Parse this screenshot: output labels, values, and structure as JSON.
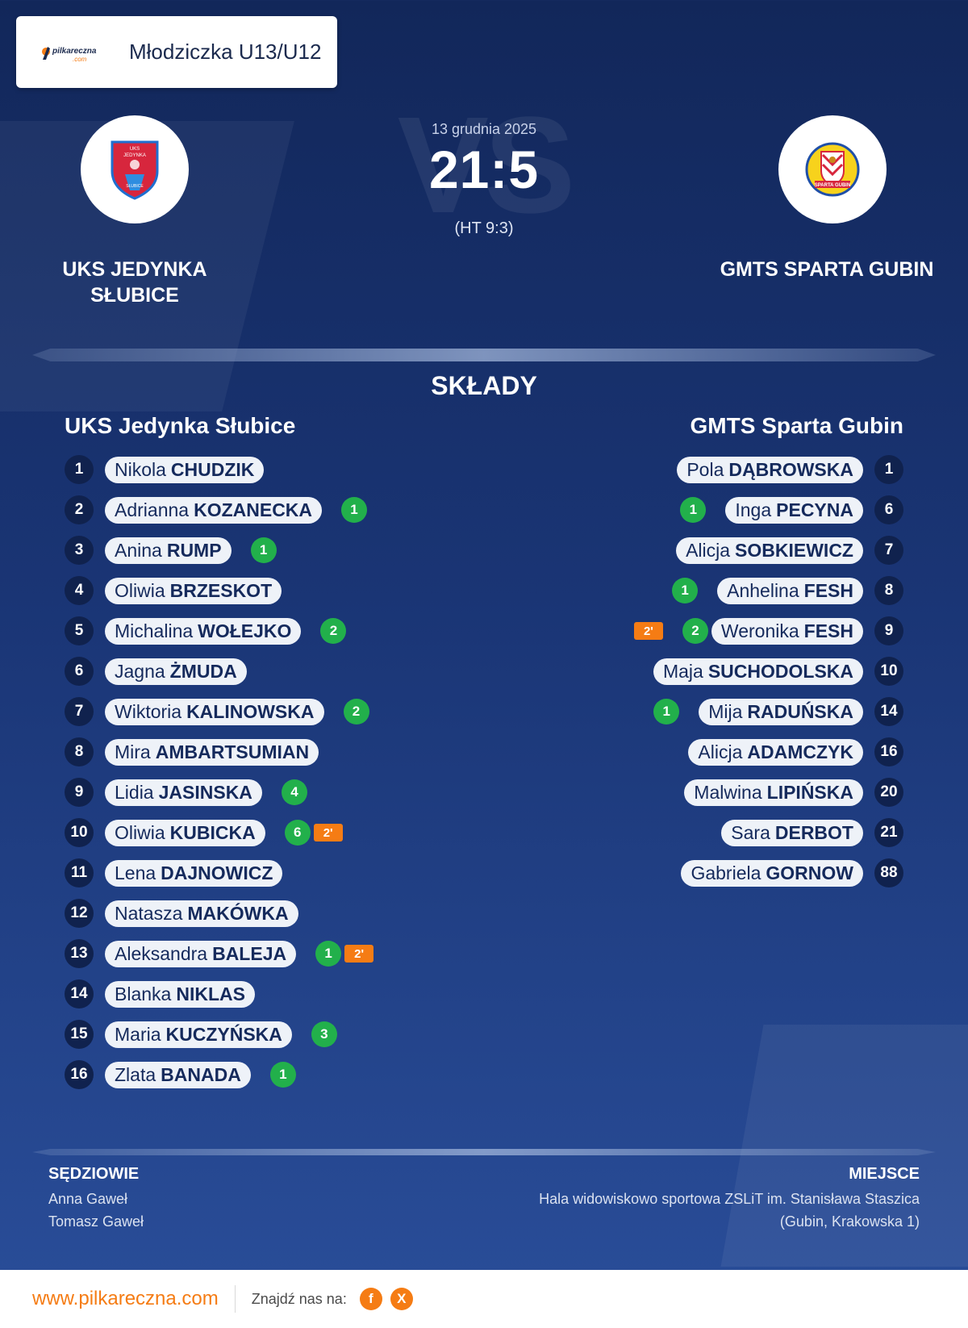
{
  "header": {
    "league": "Młodziczka U13/U12",
    "logo_text": "pilkareczna",
    "logo_sub": ".com"
  },
  "match": {
    "date": "13 grudnia 2025",
    "score": "21:5",
    "halftime": "(HT 9:3)",
    "vs_watermark": "VS",
    "home_logo_text": [
      "UKS",
      "JEDYNKA",
      "SŁUBICE"
    ],
    "away_logo_text": "SPARTA GUBIN",
    "home": {
      "name_line1": "UKS JEDYNKA",
      "name_line2": "SŁUBICE"
    },
    "away": {
      "name": "GMTS SPARTA GUBIN"
    }
  },
  "lineups": {
    "title": "SKŁADY",
    "home_title": "UKS Jedynka Słubice",
    "away_title": "GMTS Sparta Gubin",
    "home_players": [
      {
        "number": "1",
        "first": "Nikola",
        "last": "CHUDZIK",
        "goals": "",
        "penalty": ""
      },
      {
        "number": "2",
        "first": "Adrianna",
        "last": "KOZANECKA",
        "goals": "1",
        "penalty": ""
      },
      {
        "number": "3",
        "first": "Anina",
        "last": "RUMP",
        "goals": "1",
        "penalty": ""
      },
      {
        "number": "4",
        "first": "Oliwia",
        "last": "BRZESKOT",
        "goals": "",
        "penalty": ""
      },
      {
        "number": "5",
        "first": "Michalina",
        "last": "WOŁEJKO",
        "goals": "2",
        "penalty": ""
      },
      {
        "number": "6",
        "first": "Jagna",
        "last": "ŻMUDA",
        "goals": "",
        "penalty": ""
      },
      {
        "number": "7",
        "first": "Wiktoria",
        "last": "KALINOWSKA",
        "goals": "2",
        "penalty": ""
      },
      {
        "number": "8",
        "first": "Mira",
        "last": "AMBARTSUMIAN",
        "goals": "",
        "penalty": ""
      },
      {
        "number": "9",
        "first": "Lidia",
        "last": "JASINSKA",
        "goals": "4",
        "penalty": ""
      },
      {
        "number": "10",
        "first": "Oliwia",
        "last": "KUBICKA",
        "goals": "6",
        "penalty": "2'"
      },
      {
        "number": "11",
        "first": "Lena",
        "last": "DAJNOWICZ",
        "goals": "",
        "penalty": ""
      },
      {
        "number": "12",
        "first": "Natasza",
        "last": "MAKÓWKA",
        "goals": "",
        "penalty": ""
      },
      {
        "number": "13",
        "first": "Aleksandra",
        "last": "BALEJA",
        "goals": "1",
        "penalty": "2'"
      },
      {
        "number": "14",
        "first": "Blanka",
        "last": "NIKLAS",
        "goals": "",
        "penalty": ""
      },
      {
        "number": "15",
        "first": "Maria",
        "last": "KUCZYŃSKA",
        "goals": "3",
        "penalty": ""
      },
      {
        "number": "16",
        "first": "Zlata",
        "last": "BANADA",
        "goals": "1",
        "penalty": ""
      }
    ],
    "away_players": [
      {
        "number": "1",
        "first": "Pola",
        "last": "DĄBROWSKA",
        "goals": "",
        "penalty": ""
      },
      {
        "number": "6",
        "first": "Inga",
        "last": "PECYNA",
        "goals": "1",
        "penalty": ""
      },
      {
        "number": "7",
        "first": "Alicja",
        "last": "SOBKIEWICZ",
        "goals": "",
        "penalty": ""
      },
      {
        "number": "8",
        "first": "Anhelina",
        "last": "FESH",
        "goals": "1",
        "penalty": ""
      },
      {
        "number": "9",
        "first": "Weronika",
        "last": "FESH",
        "goals": "2",
        "penalty": "2'"
      },
      {
        "number": "10",
        "first": "Maja",
        "last": "SUCHODOLSKA",
        "goals": "",
        "penalty": ""
      },
      {
        "number": "14",
        "first": "Mija",
        "last": "RADUŃSKA",
        "goals": "1",
        "penalty": ""
      },
      {
        "number": "16",
        "first": "Alicja",
        "last": "ADAMCZYK",
        "goals": "",
        "penalty": ""
      },
      {
        "number": "20",
        "first": "Malwina",
        "last": "LIPIŃSKA",
        "goals": "",
        "penalty": ""
      },
      {
        "number": "21",
        "first": "Sara",
        "last": "DERBOT",
        "goals": "",
        "penalty": ""
      },
      {
        "number": "88",
        "first": "Gabriela",
        "last": "GORNOW",
        "goals": "",
        "penalty": ""
      }
    ]
  },
  "officials": {
    "title": "SĘDZIOWIE",
    "referees": [
      "Anna Gaweł",
      "Tomasz Gaweł"
    ]
  },
  "venue": {
    "title": "MIEJSCE",
    "name": "Hala widowiskowo sportowa ZSLiT im. Stanisława Staszica",
    "address": "(Gubin, Krakowska 1)"
  },
  "footer": {
    "site": "www.pilkareczna.com",
    "find_us": "Znajdź nas na:",
    "facebook": "f",
    "x": "X"
  },
  "colors": {
    "goal_badge": "#22b04b",
    "penalty_badge": "#f57c14",
    "accent": "#f57c14",
    "background": "#1a3575"
  }
}
